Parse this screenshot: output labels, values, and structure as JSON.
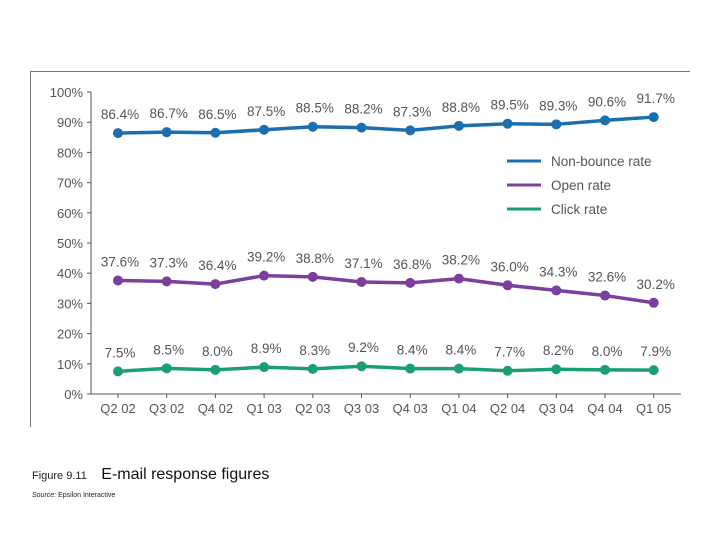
{
  "caption": {
    "figure_number": "Figure 9.11",
    "title": "E-mail response figures",
    "source_label": "Source:",
    "source_text": "Epsilon Interactive"
  },
  "chart_data": {
    "type": "line",
    "categories": [
      "Q2 02",
      "Q3 02",
      "Q4 02",
      "Q1 03",
      "Q2 03",
      "Q3 03",
      "Q4 03",
      "Q1 04",
      "Q2 04",
      "Q3 04",
      "Q4 04",
      "Q1 05"
    ],
    "ylim": [
      0,
      100
    ],
    "yticks": [
      "0%",
      "10%",
      "20%",
      "30%",
      "40%",
      "50%",
      "60%",
      "70%",
      "80%",
      "90%",
      "100%"
    ],
    "grid": false,
    "legend_position": "right",
    "series": [
      {
        "name": "Non-bounce rate",
        "color": "#1b6fae",
        "values": [
          86.4,
          86.7,
          86.5,
          87.5,
          88.5,
          88.2,
          87.3,
          88.8,
          89.5,
          89.3,
          90.6,
          91.7
        ],
        "labels": [
          "86.4%",
          "86.7%",
          "86.5%",
          "87.5%",
          "88.5%",
          "88.2%",
          "87.3%",
          "88.8%",
          "89.5%",
          "89.3%",
          "90.6%",
          "91.7%"
        ]
      },
      {
        "name": "Open rate",
        "color": "#7b3f9e",
        "values": [
          37.6,
          37.3,
          36.4,
          39.2,
          38.8,
          37.1,
          36.8,
          38.2,
          36.0,
          34.3,
          32.6,
          30.2
        ],
        "labels": [
          "37.6%",
          "37.3%",
          "36.4%",
          "39.2%",
          "38.8%",
          "37.1%",
          "36.8%",
          "38.2%",
          "36.0%",
          "34.3%",
          "32.6%",
          "30.2%"
        ]
      },
      {
        "name": "Click rate",
        "color": "#1a9e77",
        "values": [
          7.5,
          8.5,
          8.0,
          8.9,
          8.3,
          9.2,
          8.4,
          8.4,
          7.7,
          8.2,
          8.0,
          7.9
        ],
        "labels": [
          "7.5%",
          "8.5%",
          "8.0%",
          "8.9%",
          "8.3%",
          "9.2%",
          "8.4%",
          "8.4%",
          "7.7%",
          "8.2%",
          "8.0%",
          "7.9%"
        ]
      }
    ]
  }
}
